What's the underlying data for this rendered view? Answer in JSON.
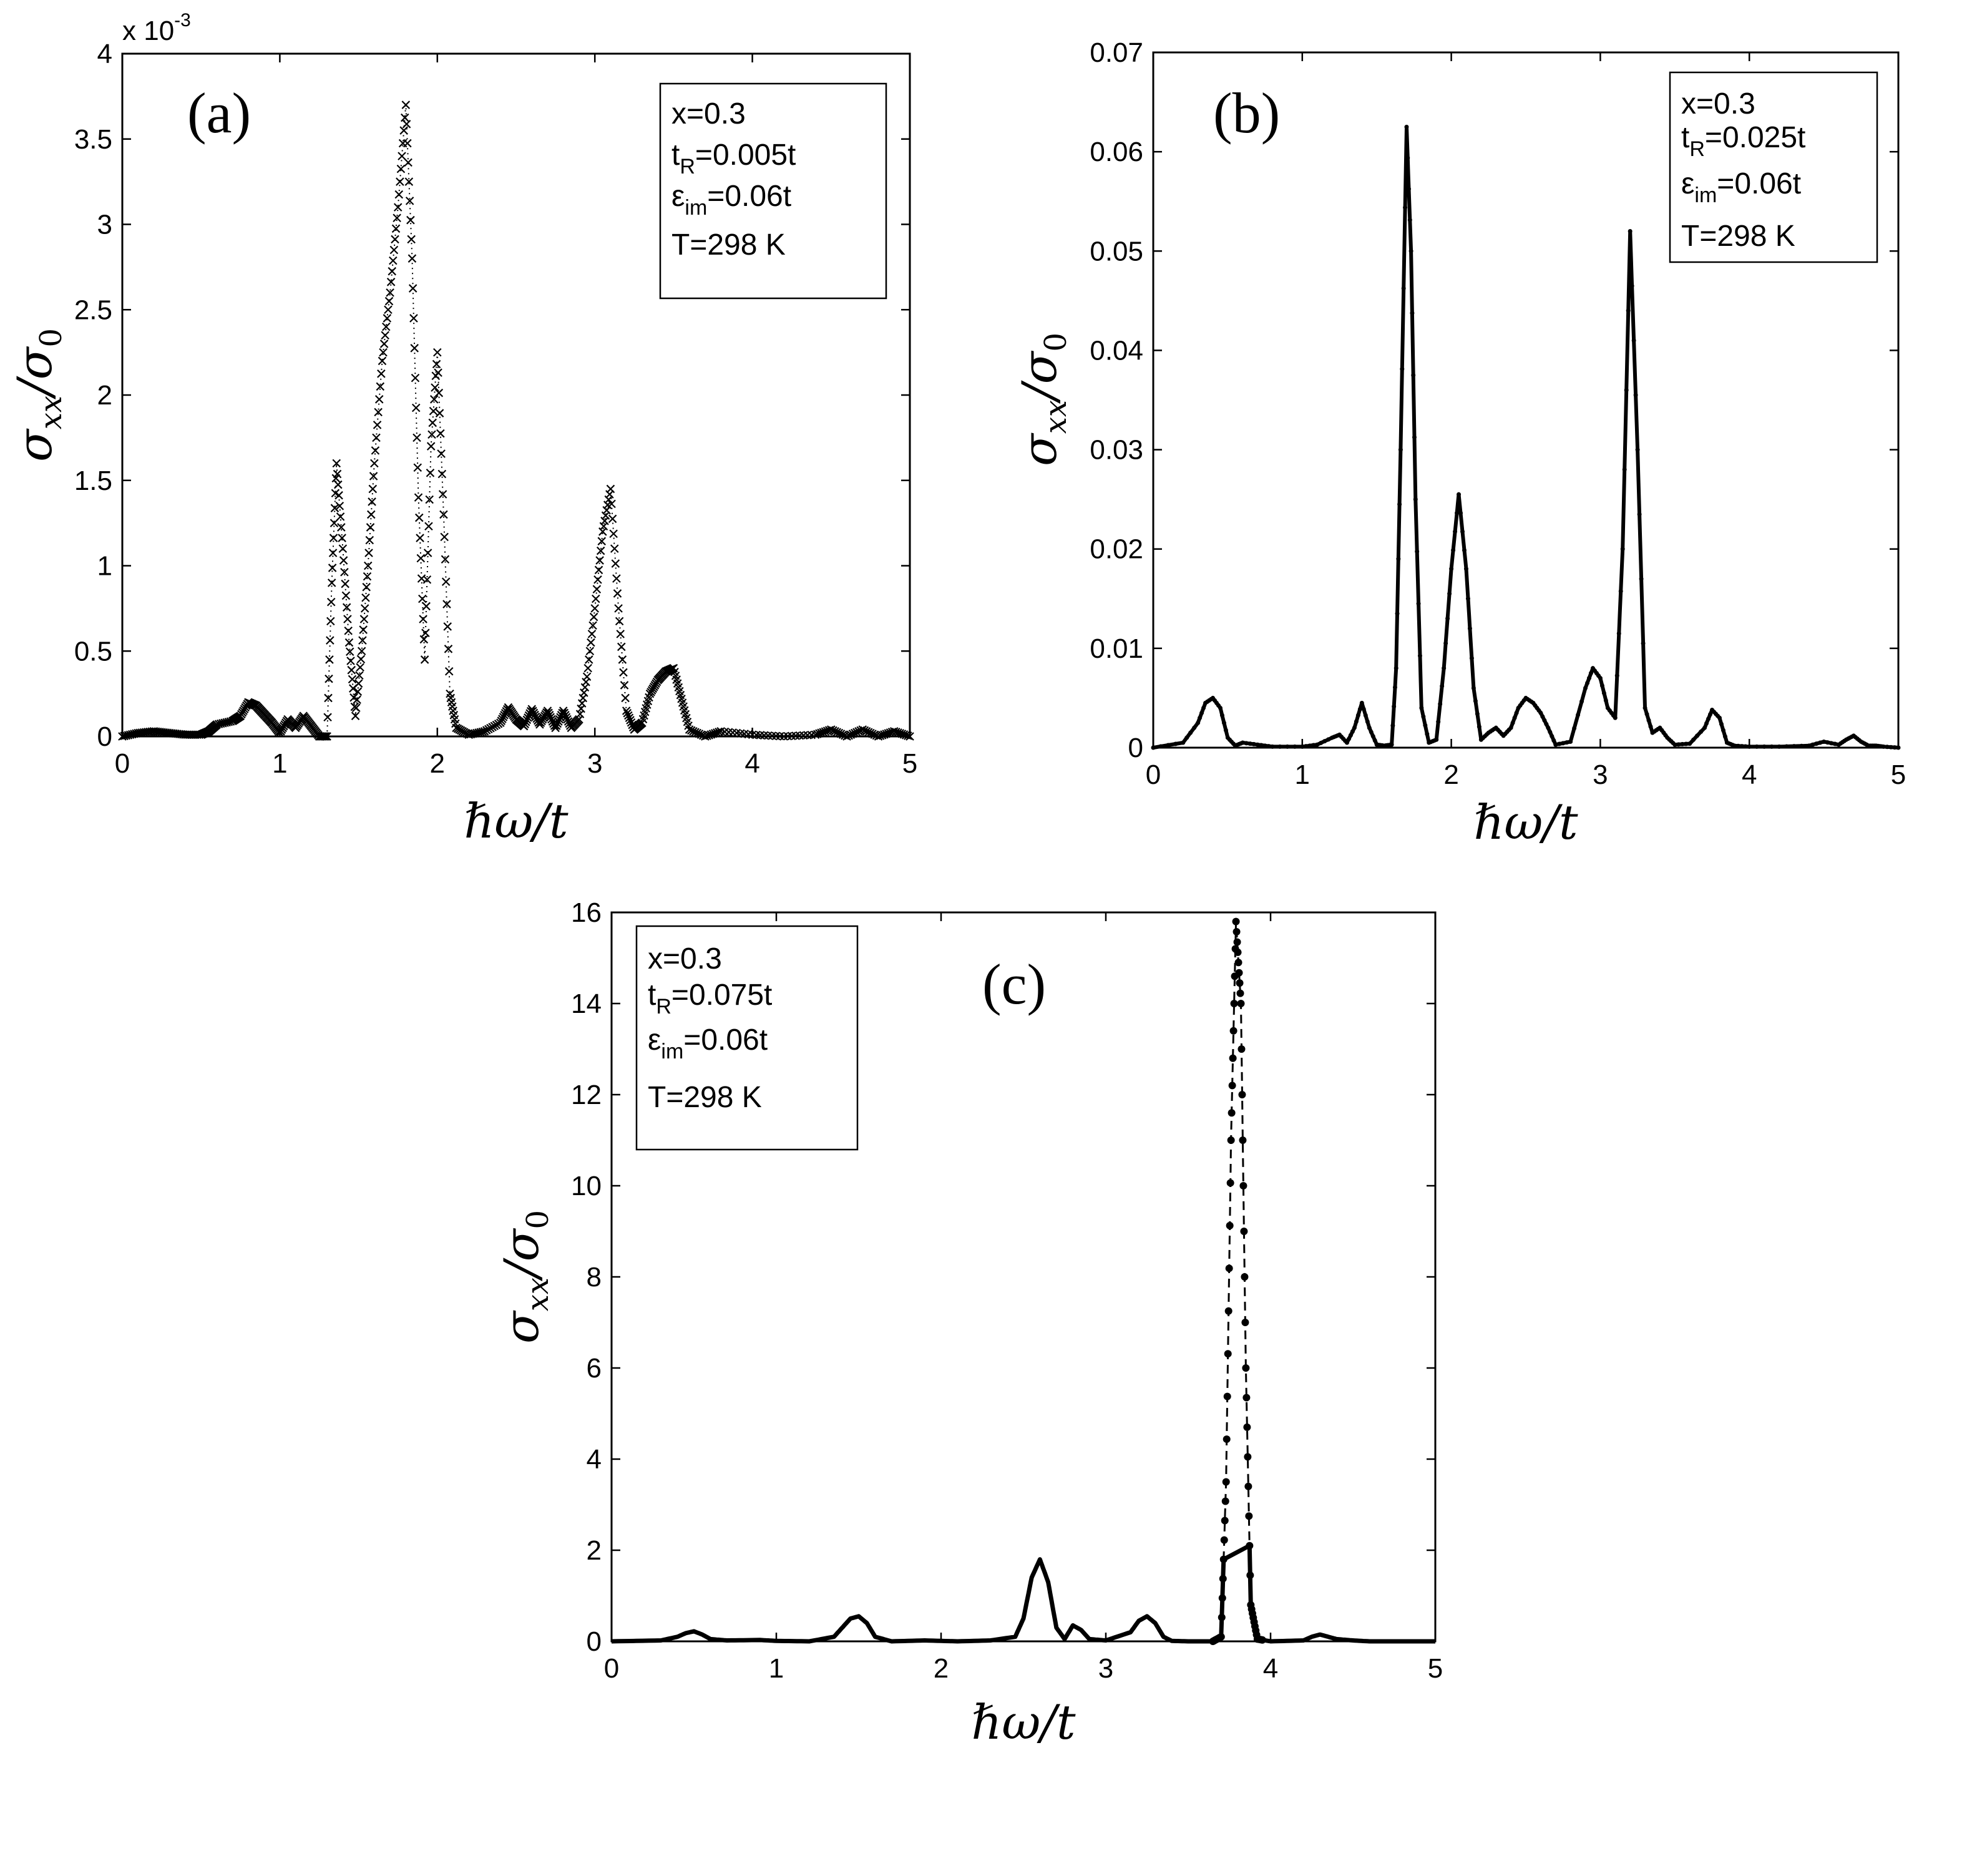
{
  "chart_data": [
    {
      "type": "line",
      "panel_label": "(a)",
      "multiplier": "x 10",
      "multiplier_exp": "-3",
      "xlabel": "ℏω/t",
      "ylabel": "σxx/σ0",
      "xlim": [
        0,
        5
      ],
      "ylim": [
        0,
        4
      ],
      "xticks": [
        "0",
        "1",
        "2",
        "3",
        "4",
        "5"
      ],
      "yticks": [
        "0",
        "0.5",
        "1",
        "1.5",
        "2",
        "2.5",
        "3",
        "3.5",
        "4"
      ],
      "marker": "x",
      "legend_position": "top-right",
      "legend": {
        "x": "x=0.3",
        "tR": "=0.005t",
        "eim": "=0.06t",
        "T": "T=298 K"
      },
      "series": [
        {
          "x": [
            0,
            0.1,
            0.2,
            0.3,
            0.4,
            0.5,
            0.55,
            0.6,
            0.7,
            0.75,
            0.8,
            0.85,
            0.9,
            0.95,
            1.0,
            1.05,
            1.1,
            1.15,
            1.2,
            1.25,
            1.3,
            1.33,
            1.36,
            1.4,
            1.44,
            1.48,
            1.52,
            1.56,
            1.6,
            1.65,
            1.7,
            1.75,
            1.8,
            1.84,
            1.88,
            1.92,
            1.96,
            2.0,
            2.04,
            2.08,
            2.12,
            2.2,
            2.3,
            2.4,
            2.45,
            2.5,
            2.55,
            2.6,
            2.65,
            2.7,
            2.75,
            2.8,
            2.85,
            2.9,
            2.95,
            3.0,
            3.05,
            3.1,
            3.15,
            3.2,
            3.25,
            3.3,
            3.35,
            3.4,
            3.45,
            3.5,
            3.55,
            3.6,
            3.7,
            3.8,
            4.0,
            4.2,
            4.4,
            4.5,
            4.6,
            4.7,
            4.8,
            4.9,
            5.0
          ],
          "y": [
            0.0,
            0.02,
            0.03,
            0.02,
            0.01,
            0.01,
            0.03,
            0.07,
            0.09,
            0.12,
            0.2,
            0.18,
            0.13,
            0.08,
            0.02,
            0.1,
            0.05,
            0.12,
            0.06,
            0.0,
            0.0,
            0.9,
            1.6,
            1.1,
            0.55,
            0.12,
            0.5,
            1.0,
            1.6,
            2.2,
            2.6,
            3.1,
            3.7,
            2.8,
            1.4,
            0.45,
            1.7,
            2.25,
            1.3,
            0.25,
            0.05,
            0.01,
            0.03,
            0.08,
            0.17,
            0.1,
            0.06,
            0.16,
            0.07,
            0.15,
            0.05,
            0.15,
            0.05,
            0.1,
            0.35,
            0.75,
            1.2,
            1.45,
            0.75,
            0.15,
            0.04,
            0.08,
            0.25,
            0.33,
            0.38,
            0.4,
            0.22,
            0.04,
            0.0,
            0.03,
            0.01,
            0.0,
            0.01,
            0.04,
            0.0,
            0.04,
            0.0,
            0.03,
            0.0
          ]
        }
      ]
    },
    {
      "type": "line",
      "panel_label": "(b)",
      "xlabel": "ℏω/t",
      "ylabel": "σxx/σ0",
      "xlim": [
        0,
        5
      ],
      "ylim": [
        0,
        0.07
      ],
      "xticks": [
        "0",
        "1",
        "2",
        "3",
        "4",
        "5"
      ],
      "yticks": [
        "0",
        "0.01",
        "0.02",
        "0.03",
        "0.04",
        "0.05",
        "0.06",
        "0.07"
      ],
      "marker": "line",
      "legend_position": "top-right",
      "legend": {
        "x": "x=0.3",
        "tR": "=0.025t",
        "eim": "=0.06t",
        "T": "T=298 K"
      },
      "series": [
        {
          "x": [
            0,
            0.2,
            0.3,
            0.35,
            0.4,
            0.45,
            0.5,
            0.55,
            0.6,
            0.7,
            0.8,
            1.0,
            1.1,
            1.2,
            1.25,
            1.3,
            1.35,
            1.4,
            1.45,
            1.5,
            1.55,
            1.6,
            1.63,
            1.66,
            1.7,
            1.73,
            1.76,
            1.8,
            1.85,
            1.9,
            1.95,
            2.0,
            2.05,
            2.1,
            2.15,
            2.2,
            2.25,
            2.3,
            2.35,
            2.4,
            2.45,
            2.5,
            2.55,
            2.6,
            2.65,
            2.7,
            2.8,
            2.9,
            2.95,
            3.0,
            3.05,
            3.1,
            3.15,
            3.2,
            3.25,
            3.3,
            3.35,
            3.4,
            3.45,
            3.5,
            3.6,
            3.7,
            3.75,
            3.8,
            3.85,
            3.9,
            4.0,
            4.2,
            4.4,
            4.5,
            4.6,
            4.65,
            4.7,
            4.75,
            4.8,
            4.85,
            4.9,
            5.0
          ],
          "y": [
            0.0,
            0.0005,
            0.0025,
            0.0045,
            0.005,
            0.004,
            0.001,
            0.0002,
            0.0005,
            0.0003,
            0.0001,
            0.0001,
            0.0003,
            0.001,
            0.0013,
            0.0005,
            0.002,
            0.0045,
            0.002,
            0.0003,
            0.0002,
            0.0003,
            0.008,
            0.03,
            0.0625,
            0.05,
            0.025,
            0.004,
            0.0005,
            0.0008,
            0.008,
            0.018,
            0.0255,
            0.018,
            0.006,
            0.0008,
            0.0015,
            0.002,
            0.0012,
            0.002,
            0.004,
            0.005,
            0.0045,
            0.0035,
            0.002,
            0.0003,
            0.0006,
            0.006,
            0.008,
            0.007,
            0.004,
            0.003,
            0.02,
            0.052,
            0.03,
            0.004,
            0.0015,
            0.002,
            0.001,
            0.0003,
            0.0004,
            0.002,
            0.0038,
            0.003,
            0.0005,
            0.0002,
            0.0001,
            0.0001,
            0.0002,
            0.0006,
            0.0003,
            0.0008,
            0.0012,
            0.0006,
            0.0002,
            0.0002,
            0.0001,
            0.0
          ]
        }
      ]
    },
    {
      "type": "line",
      "panel_label": "(c)",
      "xlabel": "ℏω/t",
      "ylabel": "σxx/σ0",
      "xlim": [
        0,
        5
      ],
      "ylim": [
        0,
        16
      ],
      "xticks": [
        "0",
        "1",
        "2",
        "3",
        "4",
        "5"
      ],
      "yticks": [
        "0",
        "2",
        "4",
        "6",
        "8",
        "10",
        "12",
        "14",
        "16"
      ],
      "marker": "dot-dashed",
      "legend_position": "top-left",
      "legend": {
        "x": "x=0.3",
        "tR": "=0.075t",
        "eim": "=0.06t",
        "T": "T=298 K"
      },
      "series": [
        {
          "x": [
            0,
            0.3,
            0.4,
            0.45,
            0.5,
            0.55,
            0.6,
            0.7,
            0.9,
            1.0,
            1.2,
            1.35,
            1.4,
            1.45,
            1.5,
            1.55,
            1.6,
            1.7,
            1.9,
            2.1,
            2.3,
            2.45,
            2.5,
            2.55,
            2.6,
            2.65,
            2.7,
            2.75,
            2.8,
            2.85,
            2.9,
            3.0,
            3.15,
            3.2,
            3.25,
            3.3,
            3.35,
            3.4,
            3.5,
            3.65,
            3.7,
            3.73,
            3.76,
            3.79,
            3.82,
            3.85,
            3.88,
            3.92,
            4.0,
            4.2,
            4.25,
            4.3,
            4.35,
            4.4,
            4.5,
            4.6,
            4.8,
            5.0
          ],
          "y": [
            0.0,
            0.02,
            0.1,
            0.18,
            0.22,
            0.15,
            0.05,
            0.02,
            0.03,
            0.01,
            0.0,
            0.1,
            0.3,
            0.5,
            0.55,
            0.4,
            0.1,
            0.0,
            0.02,
            0.0,
            0.02,
            0.1,
            0.5,
            1.4,
            1.8,
            1.3,
            0.3,
            0.05,
            0.35,
            0.25,
            0.05,
            0.02,
            0.2,
            0.45,
            0.55,
            0.4,
            0.1,
            0.01,
            0.0,
            0.0,
            0.1,
            3.5,
            11.0,
            15.8,
            14.0,
            6.0,
            0.8,
            0.05,
            0.0,
            0.02,
            0.1,
            0.15,
            0.1,
            0.05,
            0.02,
            0.0,
            0.0,
            0.0
          ]
        }
      ]
    }
  ]
}
